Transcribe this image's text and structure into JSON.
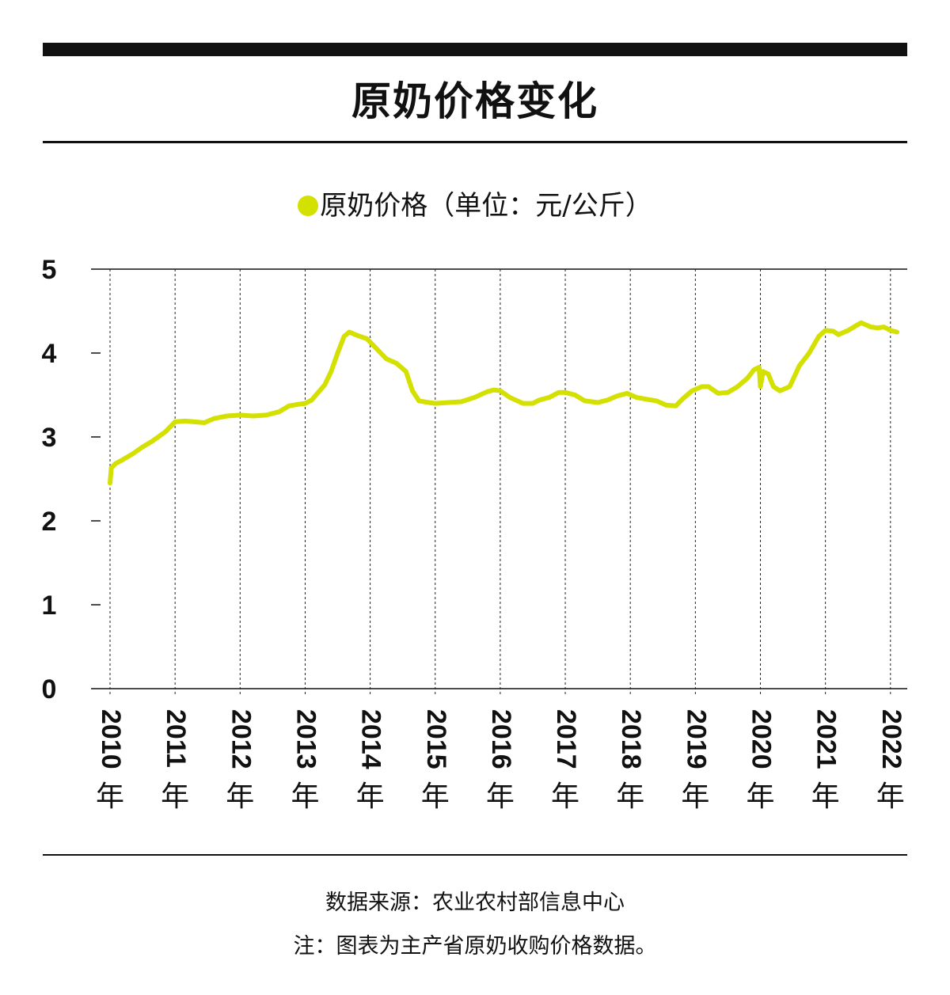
{
  "title": "原奶价格变化",
  "legend_label": "原奶价格（单位：元/公斤）",
  "source": "数据来源：农业农村部信息中心",
  "note": "注：图表为主产省原奶收购价格数据。",
  "chart_data": {
    "type": "line",
    "title": "原奶价格变化",
    "ylim": [
      0,
      5
    ],
    "yticks": [
      0,
      1,
      2,
      3,
      4,
      5
    ],
    "grid": "vertical dashed lines at year ticks",
    "legend_position": "top-center",
    "line_color": "#d4e000",
    "x_ticks": [
      {
        "x": 2010.0,
        "label": "2010年"
      },
      {
        "x": 2011.0,
        "label": "2011年"
      },
      {
        "x": 2012.0,
        "label": "2012年"
      },
      {
        "x": 2013.0,
        "label": "2013年"
      },
      {
        "x": 2014.0,
        "label": "2014年"
      },
      {
        "x": 2015.0,
        "label": "2015年"
      },
      {
        "x": 2016.0,
        "label": "2016年"
      },
      {
        "x": 2017.0,
        "label": "2017年"
      },
      {
        "x": 2018.0,
        "label": "2018年"
      },
      {
        "x": 2019.0,
        "label": "2019年"
      },
      {
        "x": 2020.0,
        "label": "2020年"
      },
      {
        "x": 2021.0,
        "label": "2021年"
      },
      {
        "x": 2022.0,
        "label": "2022年"
      }
    ],
    "series": [
      {
        "name": "原奶价格",
        "points": [
          [
            2010.0,
            2.45
          ],
          [
            2010.02,
            2.63
          ],
          [
            2010.08,
            2.68
          ],
          [
            2010.2,
            2.73
          ],
          [
            2010.35,
            2.8
          ],
          [
            2010.5,
            2.88
          ],
          [
            2010.65,
            2.95
          ],
          [
            2010.85,
            3.06
          ],
          [
            2011.0,
            3.18
          ],
          [
            2011.15,
            3.19
          ],
          [
            2011.3,
            3.18
          ],
          [
            2011.45,
            3.17
          ],
          [
            2011.6,
            3.22
          ],
          [
            2011.8,
            3.25
          ],
          [
            2012.0,
            3.26
          ],
          [
            2012.2,
            3.25
          ],
          [
            2012.4,
            3.26
          ],
          [
            2012.6,
            3.3
          ],
          [
            2012.75,
            3.37
          ],
          [
            2012.9,
            3.39
          ],
          [
            2013.0,
            3.4
          ],
          [
            2013.1,
            3.44
          ],
          [
            2013.2,
            3.53
          ],
          [
            2013.3,
            3.62
          ],
          [
            2013.4,
            3.78
          ],
          [
            2013.5,
            4.0
          ],
          [
            2013.6,
            4.2
          ],
          [
            2013.68,
            4.25
          ],
          [
            2013.8,
            4.21
          ],
          [
            2013.95,
            4.17
          ],
          [
            2014.1,
            4.05
          ],
          [
            2014.25,
            3.93
          ],
          [
            2014.4,
            3.88
          ],
          [
            2014.55,
            3.78
          ],
          [
            2014.65,
            3.55
          ],
          [
            2014.75,
            3.43
          ],
          [
            2014.9,
            3.41
          ],
          [
            2015.0,
            3.4
          ],
          [
            2015.2,
            3.41
          ],
          [
            2015.4,
            3.42
          ],
          [
            2015.6,
            3.47
          ],
          [
            2015.8,
            3.54
          ],
          [
            2015.9,
            3.56
          ],
          [
            2016.0,
            3.55
          ],
          [
            2016.15,
            3.47
          ],
          [
            2016.35,
            3.4
          ],
          [
            2016.5,
            3.4
          ],
          [
            2016.6,
            3.44
          ],
          [
            2016.75,
            3.47
          ],
          [
            2016.9,
            3.53
          ],
          [
            2017.0,
            3.53
          ],
          [
            2017.15,
            3.5
          ],
          [
            2017.3,
            3.43
          ],
          [
            2017.5,
            3.41
          ],
          [
            2017.65,
            3.44
          ],
          [
            2017.8,
            3.49
          ],
          [
            2017.95,
            3.52
          ],
          [
            2018.1,
            3.47
          ],
          [
            2018.25,
            3.45
          ],
          [
            2018.4,
            3.43
          ],
          [
            2018.55,
            3.38
          ],
          [
            2018.7,
            3.37
          ],
          [
            2018.8,
            3.45
          ],
          [
            2018.95,
            3.55
          ],
          [
            2019.1,
            3.6
          ],
          [
            2019.2,
            3.6
          ],
          [
            2019.35,
            3.52
          ],
          [
            2019.5,
            3.53
          ],
          [
            2019.65,
            3.6
          ],
          [
            2019.8,
            3.7
          ],
          [
            2019.9,
            3.8
          ],
          [
            2019.98,
            3.83
          ],
          [
            2020.0,
            3.6
          ],
          [
            2020.04,
            3.78
          ],
          [
            2020.12,
            3.75
          ],
          [
            2020.2,
            3.6
          ],
          [
            2020.3,
            3.55
          ],
          [
            2020.45,
            3.6
          ],
          [
            2020.6,
            3.85
          ],
          [
            2020.75,
            4.0
          ],
          [
            2020.9,
            4.2
          ],
          [
            2021.0,
            4.27
          ],
          [
            2021.12,
            4.26
          ],
          [
            2021.2,
            4.22
          ],
          [
            2021.35,
            4.27
          ],
          [
            2021.5,
            4.34
          ],
          [
            2021.55,
            4.36
          ],
          [
            2021.7,
            4.31
          ],
          [
            2021.8,
            4.3
          ],
          [
            2021.9,
            4.31
          ],
          [
            2022.0,
            4.27
          ],
          [
            2022.1,
            4.25
          ]
        ]
      }
    ]
  }
}
